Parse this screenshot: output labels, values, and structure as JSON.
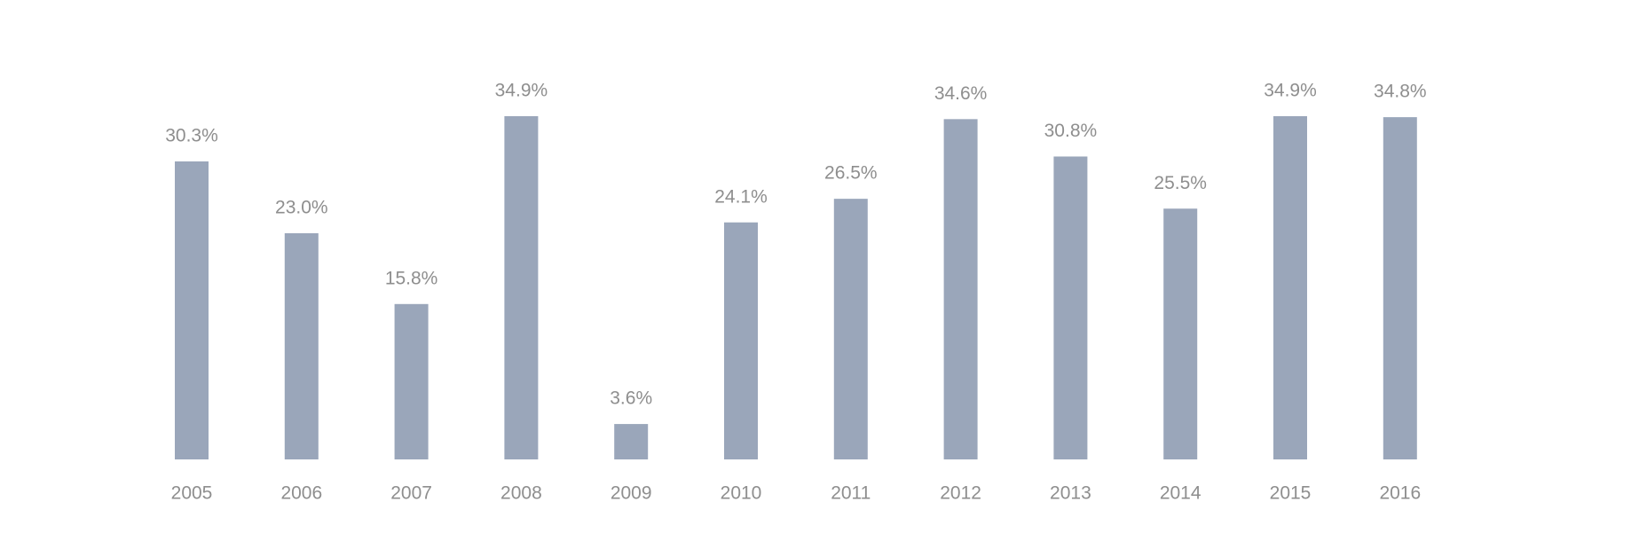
{
  "chart_data": {
    "type": "bar",
    "categories": [
      "2005",
      "2006",
      "2007",
      "2008",
      "2009",
      "2010",
      "2011",
      "2012",
      "2013",
      "2014",
      "2015",
      "2016"
    ],
    "values": [
      30.3,
      23.0,
      15.8,
      34.9,
      3.6,
      24.1,
      26.5,
      34.6,
      30.8,
      25.5,
      34.9,
      34.8
    ],
    "value_labels": [
      "30.3%",
      "23.0%",
      "15.8%",
      "34.9%",
      "3.6%",
      "24.1%",
      "26.5%",
      "34.6%",
      "30.8%",
      "25.5%",
      "34.9%",
      "34.8%"
    ],
    "color": "#9aa6ba"
  }
}
